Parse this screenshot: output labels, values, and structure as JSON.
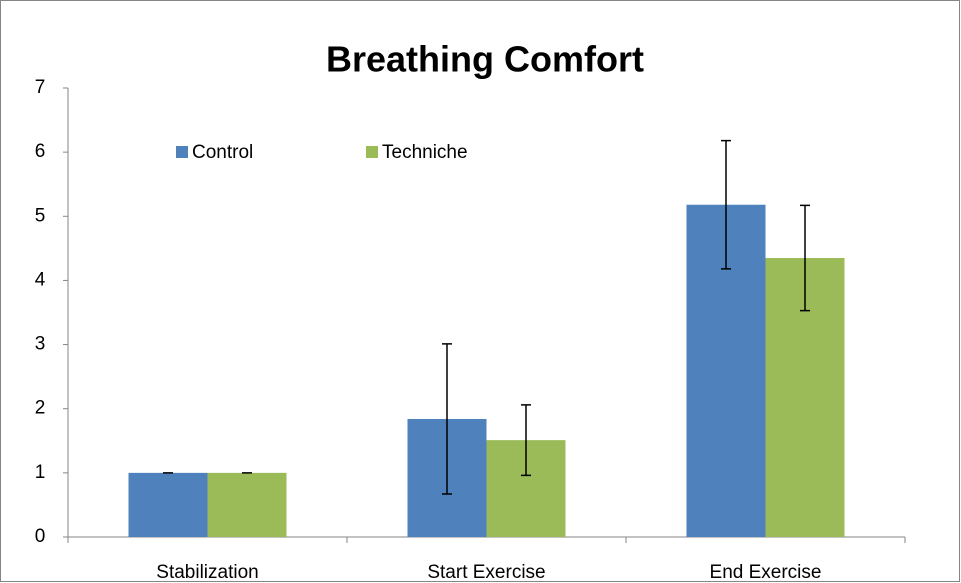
{
  "chart_data": {
    "type": "bar",
    "title": "Breathing Comfort",
    "categories": [
      "Stabilization",
      "Start Exercise",
      "End Exercise"
    ],
    "series": [
      {
        "name": "Control",
        "color": "#4f81bd",
        "values": [
          1.0,
          1.84,
          5.18
        ],
        "errors": [
          0,
          1.17,
          1.0
        ]
      },
      {
        "name": "Techniche",
        "color": "#9bbb59",
        "values": [
          1.0,
          1.51,
          4.35
        ],
        "errors": [
          0,
          0.55,
          0.82
        ]
      }
    ],
    "ylim": [
      0,
      7
    ],
    "yticks": [
      0,
      1,
      2,
      3,
      4,
      5,
      6,
      7
    ],
    "grid": false,
    "legend": "top-left"
  }
}
